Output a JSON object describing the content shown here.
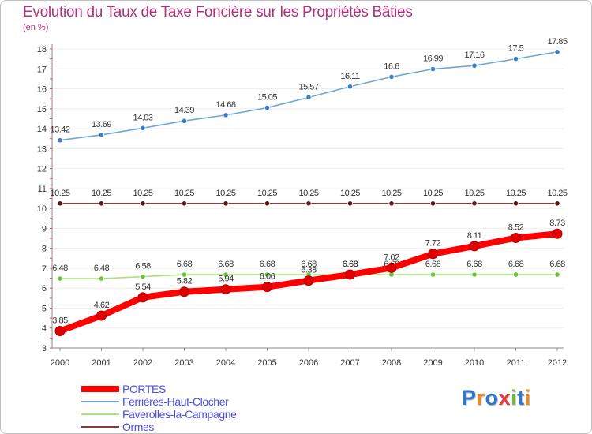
{
  "title": "Evolution du Taux de Taxe Foncière sur les Propriétés Bâties",
  "unit_label": "(en %)",
  "chart_data": {
    "type": "line",
    "title": "Evolution du Taux de Taxe Foncière sur les Propriétés Bâties",
    "xlabel": "",
    "ylabel": "(en %)",
    "ylim": [
      3,
      18
    ],
    "x": [
      "2000",
      "2001",
      "2002",
      "2003",
      "2004",
      "2005",
      "2006",
      "2007",
      "2008",
      "2009",
      "2010",
      "2011",
      "2012"
    ],
    "yticks": [
      "3",
      "4",
      "5",
      "6",
      "7",
      "8",
      "9",
      "10",
      "11",
      "12",
      "13",
      "14",
      "15",
      "16",
      "17",
      "18"
    ],
    "series": [
      {
        "name": "Ferrières-Haut-Clocher",
        "color": "#6fa8d8",
        "marker": "#3a7fc2",
        "values": [
          13.42,
          13.69,
          14.03,
          14.39,
          14.68,
          15.05,
          15.57,
          16.11,
          16.6,
          16.99,
          17.16,
          17.5,
          17.85
        ],
        "labels": [
          "13.42",
          "13.69",
          "14.03",
          "14.39",
          "14.68",
          "15.05",
          "15.57",
          "16.11",
          "16.6",
          "16.99",
          "17.16",
          "17.5",
          "17.85"
        ]
      },
      {
        "name": "Ormes",
        "color": "#8b3a3a",
        "marker": "#5a1414",
        "values": [
          10.25,
          10.25,
          10.25,
          10.25,
          10.25,
          10.25,
          10.25,
          10.25,
          10.25,
          10.25,
          10.25,
          10.25,
          10.25
        ],
        "labels": [
          "10.25",
          "10.25",
          "10.25",
          "10.25",
          "10.25",
          "10.25",
          "10.25",
          "10.25",
          "10.25",
          "10.25",
          "10.25",
          "10.25",
          "10.25"
        ]
      },
      {
        "name": "Faverolles-la-Campagne",
        "color": "#a8e27a",
        "marker": "#6cc23a",
        "values": [
          6.48,
          6.48,
          6.58,
          6.68,
          6.68,
          6.68,
          6.68,
          6.68,
          6.68,
          6.68,
          6.68,
          6.68,
          6.68
        ],
        "labels": [
          "6.48",
          "6.48",
          "6.58",
          "6.68",
          "6.68",
          "6.68",
          "6.68",
          "6.68",
          "6.68",
          "6.68",
          "6.68",
          "6.68",
          "6.68"
        ]
      },
      {
        "name": "PORTES",
        "color": "#ff0000",
        "marker": "#e00000",
        "values": [
          3.85,
          4.62,
          5.54,
          5.82,
          5.94,
          6.06,
          6.38,
          6.68,
          7.02,
          7.72,
          8.11,
          8.52,
          8.73
        ],
        "labels": [
          "3.85",
          "4.62",
          "5.54",
          "5.82",
          "5.94",
          "6.06",
          "6.38",
          "6.68",
          "7.02",
          "7.72",
          "8.11",
          "8.52",
          "8.73"
        ]
      }
    ],
    "legend": [
      {
        "name": "PORTES",
        "color": "#ff0000"
      },
      {
        "name": "Ferrières-Haut-Clocher",
        "color": "#6fa8d8"
      },
      {
        "name": "Faverolles-la-Campagne",
        "color": "#a8e27a"
      },
      {
        "name": "Ormes",
        "color": "#8b3a3a"
      }
    ],
    "legend_position": "bottom-left"
  },
  "logo": {
    "text": "Proxiti",
    "letters": [
      {
        "ch": "P",
        "color": "#2f77c9"
      },
      {
        "ch": "r",
        "color": "#f08a1c"
      },
      {
        "ch": "o",
        "color": "#2f77c9"
      },
      {
        "ch": "x",
        "color": "#e23b3b"
      },
      {
        "ch": "i",
        "color": "#6cbf3a"
      },
      {
        "ch": "t",
        "color": "#2f77c9"
      },
      {
        "ch": "i",
        "color": "#f08a1c"
      }
    ]
  }
}
